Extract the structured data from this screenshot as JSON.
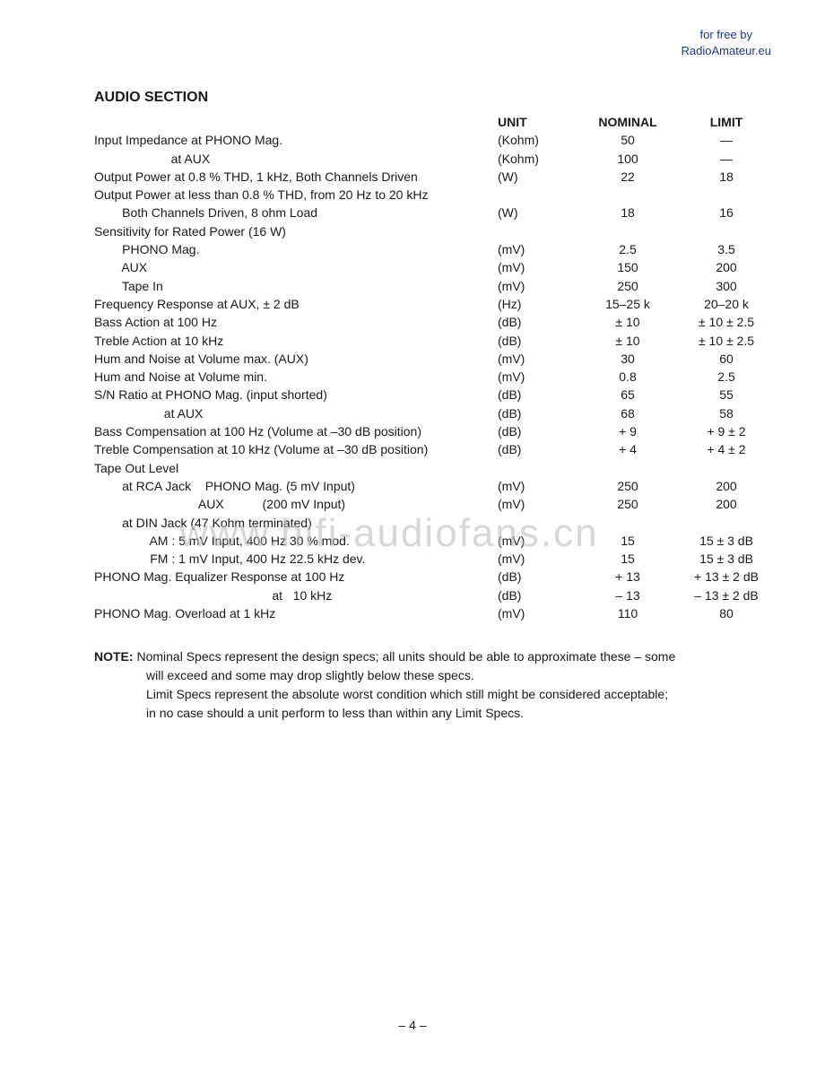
{
  "attribution": {
    "line1": "for free by",
    "line2": "RadioAmateur.eu"
  },
  "section_title": "AUDIO SECTION",
  "headers": {
    "unit": "UNIT",
    "nominal": "NOMINAL",
    "limit": "LIMIT"
  },
  "rows": [
    {
      "label": "Input Impedance at PHONO Mag.",
      "unit": "(Kohm)",
      "nominal": "50",
      "limit": "—"
    },
    {
      "label": "                      at AUX",
      "unit": "(Kohm)",
      "nominal": "100",
      "limit": "—"
    },
    {
      "label": "Output Power at 0.8 % THD, 1 kHz, Both Channels Driven",
      "unit": "(W)",
      "nominal": "22",
      "limit": "18"
    },
    {
      "label": "Output Power at less than 0.8 % THD, from 20 Hz to 20 kHz",
      "unit": "",
      "nominal": "",
      "limit": ""
    },
    {
      "label": "        Both Channels Driven, 8 ohm Load",
      "unit": "(W)",
      "nominal": "18",
      "limit": "16"
    },
    {
      "label": "Sensitivity for Rated Power (16 W)",
      "unit": "",
      "nominal": "",
      "limit": ""
    },
    {
      "label": "        PHONO Mag.",
      "unit": "(mV)",
      "nominal": "2.5",
      "limit": "3.5"
    },
    {
      "label": "        AUX",
      "unit": "(mV)",
      "nominal": "150",
      "limit": "200"
    },
    {
      "label": "        Tape In",
      "unit": "(mV)",
      "nominal": "250",
      "limit": "300"
    },
    {
      "label": "Frequency Response at AUX, ± 2 dB",
      "unit": "(Hz)",
      "nominal": "15–25 k",
      "limit": "20–20 k"
    },
    {
      "label": "Bass Action at 100 Hz",
      "unit": "(dB)",
      "nominal": "± 10",
      "limit": "± 10 ± 2.5"
    },
    {
      "label": "Treble Action at 10 kHz",
      "unit": "(dB)",
      "nominal": "± 10",
      "limit": "± 10 ± 2.5"
    },
    {
      "label": "Hum and Noise at Volume max. (AUX)",
      "unit": "(mV)",
      "nominal": "30",
      "limit": "60"
    },
    {
      "label": "Hum and Noise at Volume min.",
      "unit": "(mV)",
      "nominal": "0.8",
      "limit": "2.5"
    },
    {
      "label": "S/N Ratio at PHONO Mag. (input shorted)",
      "unit": "(dB)",
      "nominal": "65",
      "limit": "55"
    },
    {
      "label": "                    at AUX",
      "unit": "(dB)",
      "nominal": "68",
      "limit": "58"
    },
    {
      "label": "Bass Compensation at 100 Hz (Volume at –30 dB position)",
      "unit": "(dB)",
      "nominal": "+ 9",
      "limit": "+ 9 ± 2"
    },
    {
      "label": "Treble Compensation at 10 kHz (Volume at –30 dB position)",
      "unit": "(dB)",
      "nominal": "+ 4",
      "limit": "+ 4 ± 2"
    },
    {
      "label": "Tape Out Level",
      "unit": "",
      "nominal": "",
      "limit": ""
    },
    {
      "label": "        at RCA Jack    PHONO Mag. (5 mV Input)",
      "unit": "(mV)",
      "nominal": "250",
      "limit": "200"
    },
    {
      "label": "                              AUX           (200 mV Input)",
      "unit": "(mV)",
      "nominal": "250",
      "limit": "200"
    },
    {
      "label": "        at DIN Jack (47 Kohm terminated)",
      "unit": "",
      "nominal": "",
      "limit": ""
    },
    {
      "label": "                AM : 5 mV Input, 400 Hz 30 % mod.",
      "unit": "(mV)",
      "nominal": "15",
      "limit": "15 ± 3 dB"
    },
    {
      "label": "                FM : 1 mV Input, 400 Hz 22.5 kHz dev.",
      "unit": "(mV)",
      "nominal": "15",
      "limit": "15 ± 3 dB"
    },
    {
      "label": "PHONO Mag. Equalizer Response at 100 Hz",
      "unit": "(dB)",
      "nominal": "+ 13",
      "limit": "+ 13 ± 2 dB"
    },
    {
      "label": "                                                   at   10 kHz",
      "unit": "(dB)",
      "nominal": "– 13",
      "limit": "– 13 ± 2 dB"
    },
    {
      "label": "PHONO Mag. Overload at 1 kHz",
      "unit": "(mV)",
      "nominal": "110",
      "limit": "80"
    }
  ],
  "note": {
    "label": "NOTE:",
    "line1": "Nominal Specs represent the design specs; all units should be able to approximate these – some",
    "line2": "will exceed and some may drop slightly below these specs.",
    "line3": "Limit Specs represent the absolute worst condition which still might be considered acceptable;",
    "line4": "in no case should a unit perform to less than within any Limit Specs."
  },
  "watermark": "www.hifi-audiofans.cn",
  "page_number": "– 4 –"
}
